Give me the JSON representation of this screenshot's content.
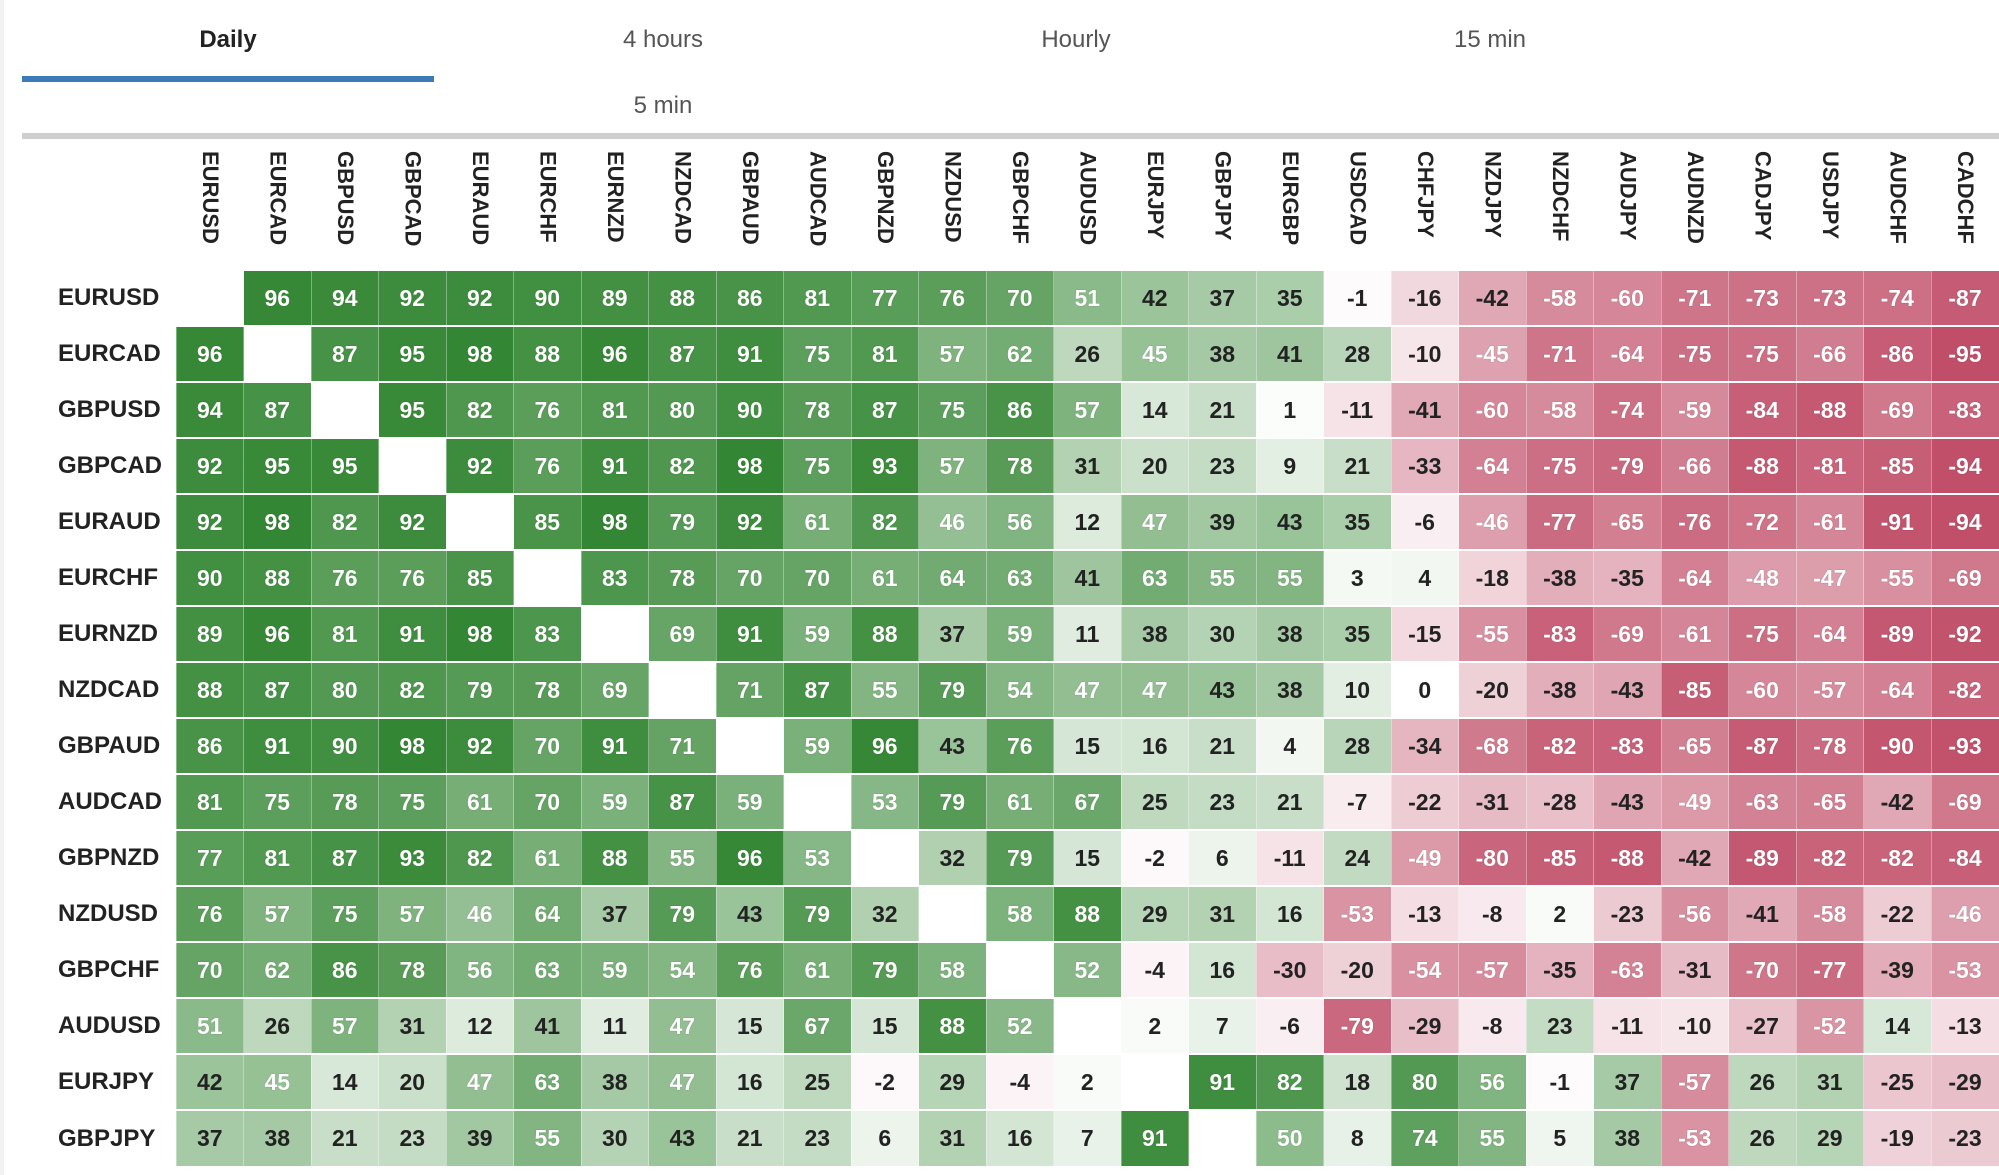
{
  "tabs": [
    {
      "label": "Daily",
      "active": true
    },
    {
      "label": "4 hours",
      "active": false
    },
    {
      "label": "Hourly",
      "active": false
    },
    {
      "label": "15 min",
      "active": false
    },
    {
      "label": "5 min",
      "active": false
    }
  ],
  "colors": {
    "accent": "#3d7ab8",
    "positive_strong": "#2f842f",
    "negative_strong": "#be4662",
    "neutral": "#ffffff"
  },
  "columns": [
    "EURUSD",
    "EURCAD",
    "GBPUSD",
    "GBPCAD",
    "EURAUD",
    "EURCHF",
    "EURNZD",
    "NZDCAD",
    "GBPAUD",
    "AUDCAD",
    "GBPNZD",
    "NZDUSD",
    "GBPCHF",
    "AUDUSD",
    "EURJPY",
    "GBPJPY",
    "EURGBP",
    "USDCAD",
    "CHFJPY",
    "NZDJPY",
    "NZDCHF",
    "AUDJPY",
    "AUDNZD",
    "CADJPY",
    "USDJPY",
    "AUDCHF",
    "CADCHF"
  ],
  "rows": [
    {
      "label": "EURUSD",
      "values": [
        "",
        "96",
        "94",
        "92",
        "92",
        "90",
        "89",
        "88",
        "86",
        "81",
        "77",
        "76",
        "70",
        "51",
        "42",
        "37",
        "35",
        "-1",
        "-16",
        "-42",
        "-58",
        "-60",
        "-71",
        "-73",
        "-73",
        "-74",
        "-87"
      ]
    },
    {
      "label": "EURCAD",
      "values": [
        "96",
        "",
        "87",
        "95",
        "98",
        "88",
        "96",
        "87",
        "91",
        "75",
        "81",
        "57",
        "62",
        "26",
        "45",
        "38",
        "41",
        "28",
        "-10",
        "-45",
        "-71",
        "-64",
        "-75",
        "-75",
        "-66",
        "-86",
        "-95"
      ]
    },
    {
      "label": "GBPUSD",
      "values": [
        "94",
        "87",
        "",
        "95",
        "82",
        "76",
        "81",
        "80",
        "90",
        "78",
        "87",
        "75",
        "86",
        "57",
        "14",
        "21",
        "1",
        "-11",
        "-41",
        "-60",
        "-58",
        "-74",
        "-59",
        "-84",
        "-88",
        "-69",
        "-83"
      ]
    },
    {
      "label": "GBPCAD",
      "values": [
        "92",
        "95",
        "95",
        "",
        "92",
        "76",
        "91",
        "82",
        "98",
        "75",
        "93",
        "57",
        "78",
        "31",
        "20",
        "23",
        "9",
        "21",
        "-33",
        "-64",
        "-75",
        "-79",
        "-66",
        "-88",
        "-81",
        "-85",
        "-94"
      ]
    },
    {
      "label": "EURAUD",
      "values": [
        "92",
        "98",
        "82",
        "92",
        "",
        "85",
        "98",
        "79",
        "92",
        "61",
        "82",
        "46",
        "56",
        "12",
        "47",
        "39",
        "43",
        "35",
        "-6",
        "-46",
        "-77",
        "-65",
        "-76",
        "-72",
        "-61",
        "-91",
        "-94"
      ]
    },
    {
      "label": "EURCHF",
      "values": [
        "90",
        "88",
        "76",
        "76",
        "85",
        "",
        "83",
        "78",
        "70",
        "70",
        "61",
        "64",
        "63",
        "41",
        "63",
        "55",
        "55",
        "3",
        "4",
        "-18",
        "-38",
        "-35",
        "-64",
        "-48",
        "-47",
        "-55",
        "-69"
      ]
    },
    {
      "label": "EURNZD",
      "values": [
        "89",
        "96",
        "81",
        "91",
        "98",
        "83",
        "",
        "69",
        "91",
        "59",
        "88",
        "37",
        "59",
        "11",
        "38",
        "30",
        "38",
        "35",
        "-15",
        "-55",
        "-83",
        "-69",
        "-61",
        "-75",
        "-64",
        "-89",
        "-92"
      ]
    },
    {
      "label": "NZDCAD",
      "values": [
        "88",
        "87",
        "80",
        "82",
        "79",
        "78",
        "69",
        "",
        "71",
        "87",
        "55",
        "79",
        "54",
        "47",
        "47",
        "43",
        "38",
        "10",
        "0",
        "-20",
        "-38",
        "-43",
        "-85",
        "-60",
        "-57",
        "-64",
        "-82"
      ]
    },
    {
      "label": "GBPAUD",
      "values": [
        "86",
        "91",
        "90",
        "98",
        "92",
        "70",
        "91",
        "71",
        "",
        "59",
        "96",
        "43",
        "76",
        "15",
        "16",
        "21",
        "4",
        "28",
        "-34",
        "-68",
        "-82",
        "-83",
        "-65",
        "-87",
        "-78",
        "-90",
        "-93"
      ]
    },
    {
      "label": "AUDCAD",
      "values": [
        "81",
        "75",
        "78",
        "75",
        "61",
        "70",
        "59",
        "87",
        "59",
        "",
        "53",
        "79",
        "61",
        "67",
        "25",
        "23",
        "21",
        "-7",
        "-22",
        "-31",
        "-28",
        "-43",
        "-49",
        "-63",
        "-65",
        "-42",
        "-69"
      ]
    },
    {
      "label": "GBPNZD",
      "values": [
        "77",
        "81",
        "87",
        "93",
        "82",
        "61",
        "88",
        "55",
        "96",
        "53",
        "",
        "32",
        "79",
        "15",
        "-2",
        "6",
        "-11",
        "24",
        "-49",
        "-80",
        "-85",
        "-88",
        "-42",
        "-89",
        "-82",
        "-82",
        "-84"
      ]
    },
    {
      "label": "NZDUSD",
      "values": [
        "76",
        "57",
        "75",
        "57",
        "46",
        "64",
        "37",
        "79",
        "43",
        "79",
        "32",
        "",
        "58",
        "88",
        "29",
        "31",
        "16",
        "-53",
        "-13",
        "-8",
        "2",
        "-23",
        "-56",
        "-41",
        "-58",
        "-22",
        "-46"
      ]
    },
    {
      "label": "GBPCHF",
      "values": [
        "70",
        "62",
        "86",
        "78",
        "56",
        "63",
        "59",
        "54",
        "76",
        "61",
        "79",
        "58",
        "",
        "52",
        "-4",
        "16",
        "-30",
        "-20",
        "-54",
        "-57",
        "-35",
        "-63",
        "-31",
        "-70",
        "-77",
        "-39",
        "-53"
      ]
    },
    {
      "label": "AUDUSD",
      "values": [
        "51",
        "26",
        "57",
        "31",
        "12",
        "41",
        "11",
        "47",
        "15",
        "67",
        "15",
        "88",
        "52",
        "",
        "2",
        "7",
        "-6",
        "-79",
        "-29",
        "-8",
        "23",
        "-11",
        "-10",
        "-27",
        "-52",
        "14",
        "-13"
      ]
    },
    {
      "label": "EURJPY",
      "values": [
        "42",
        "45",
        "14",
        "20",
        "47",
        "63",
        "38",
        "47",
        "16",
        "25",
        "-2",
        "29",
        "-4",
        "2",
        "",
        "91",
        "82",
        "18",
        "80",
        "56",
        "-1",
        "37",
        "-57",
        "26",
        "31",
        "-25",
        "-29"
      ]
    },
    {
      "label": "GBPJPY",
      "values": [
        "37",
        "38",
        "21",
        "23",
        "39",
        "55",
        "30",
        "43",
        "21",
        "23",
        "6",
        "31",
        "16",
        "7",
        "91",
        "",
        "50",
        "8",
        "74",
        "55",
        "5",
        "38",
        "-53",
        "26",
        "29",
        "-19",
        "-23"
      ]
    }
  ]
}
